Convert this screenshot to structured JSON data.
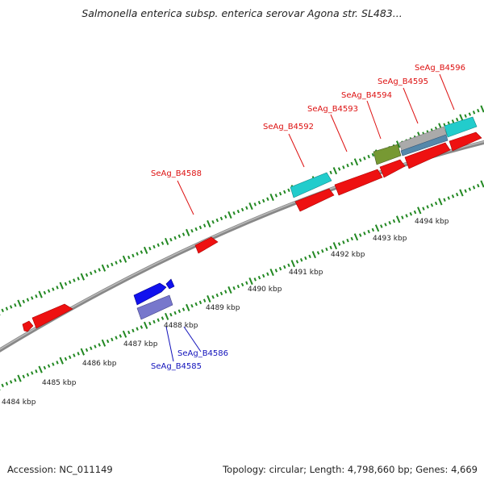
{
  "title": "Salmonella enterica subsp. enterica serovar Agona str. SL483...",
  "footer": {
    "accession": "Accession: NC_011149",
    "stats": "Topology: circular; Length: 4,798,660 bp; Genes: 4,669"
  },
  "colors": {
    "forward_gene": "#ee1111",
    "reverse_gene": "#1111ee",
    "reverse_gene_light": "#7777cc",
    "cyan_gene": "#22cccc",
    "olive_gene": "#779933",
    "grey_gene": "#aaaaaa",
    "steelblue_gene": "#5588aa",
    "ticks": "#228822",
    "backbone": "#888888",
    "forward_label": "#dd1111",
    "reverse_label": "#1111bb"
  },
  "scale": {
    "tick_labels": [
      "4484 kbp",
      "4485 kbp",
      "4486 kbp",
      "4487 kbp",
      "4488 kbp",
      "4489 kbp",
      "4490 kbp",
      "4491 kbp",
      "4492 kbp",
      "4493 kbp",
      "4494 kbp"
    ]
  },
  "gene_labels": [
    {
      "text": "SeAg_B4588",
      "strand": "forward"
    },
    {
      "text": "SeAg_B4592",
      "strand": "forward"
    },
    {
      "text": "SeAg_B4593",
      "strand": "forward"
    },
    {
      "text": "SeAg_B4594",
      "strand": "forward"
    },
    {
      "text": "SeAg_B4595",
      "strand": "forward"
    },
    {
      "text": "SeAg_B4596",
      "strand": "forward"
    },
    {
      "text": "SeAg_B4586",
      "strand": "reverse"
    },
    {
      "text": "SeAg_B4585",
      "strand": "reverse"
    }
  ]
}
